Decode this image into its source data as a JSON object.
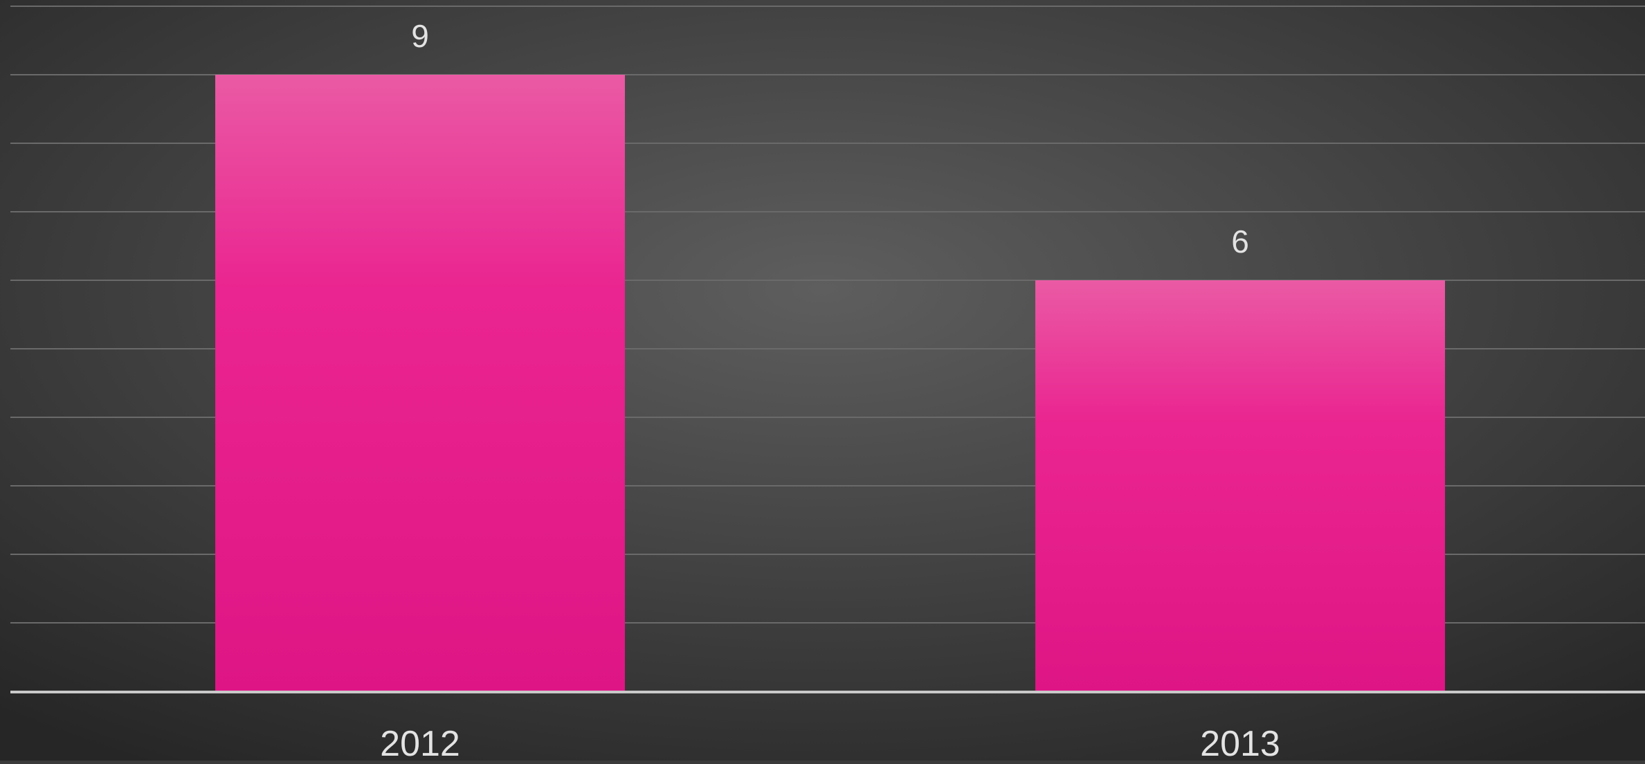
{
  "chart_data": {
    "type": "bar",
    "categories": [
      "2012",
      "2013"
    ],
    "values": [
      9,
      6
    ],
    "ylim": [
      0,
      10
    ],
    "grid": true,
    "data_labels": true,
    "colors": {
      "background_center": "#5e5e5e",
      "background_edge": "#262626",
      "bar_top": "#ea5aa4",
      "bar_mid": "#ea2490",
      "bar_bottom": "#de1685",
      "gridline": "#6a6a6a",
      "axis": "#c9c9c9",
      "text": "#e3e3e3"
    }
  }
}
